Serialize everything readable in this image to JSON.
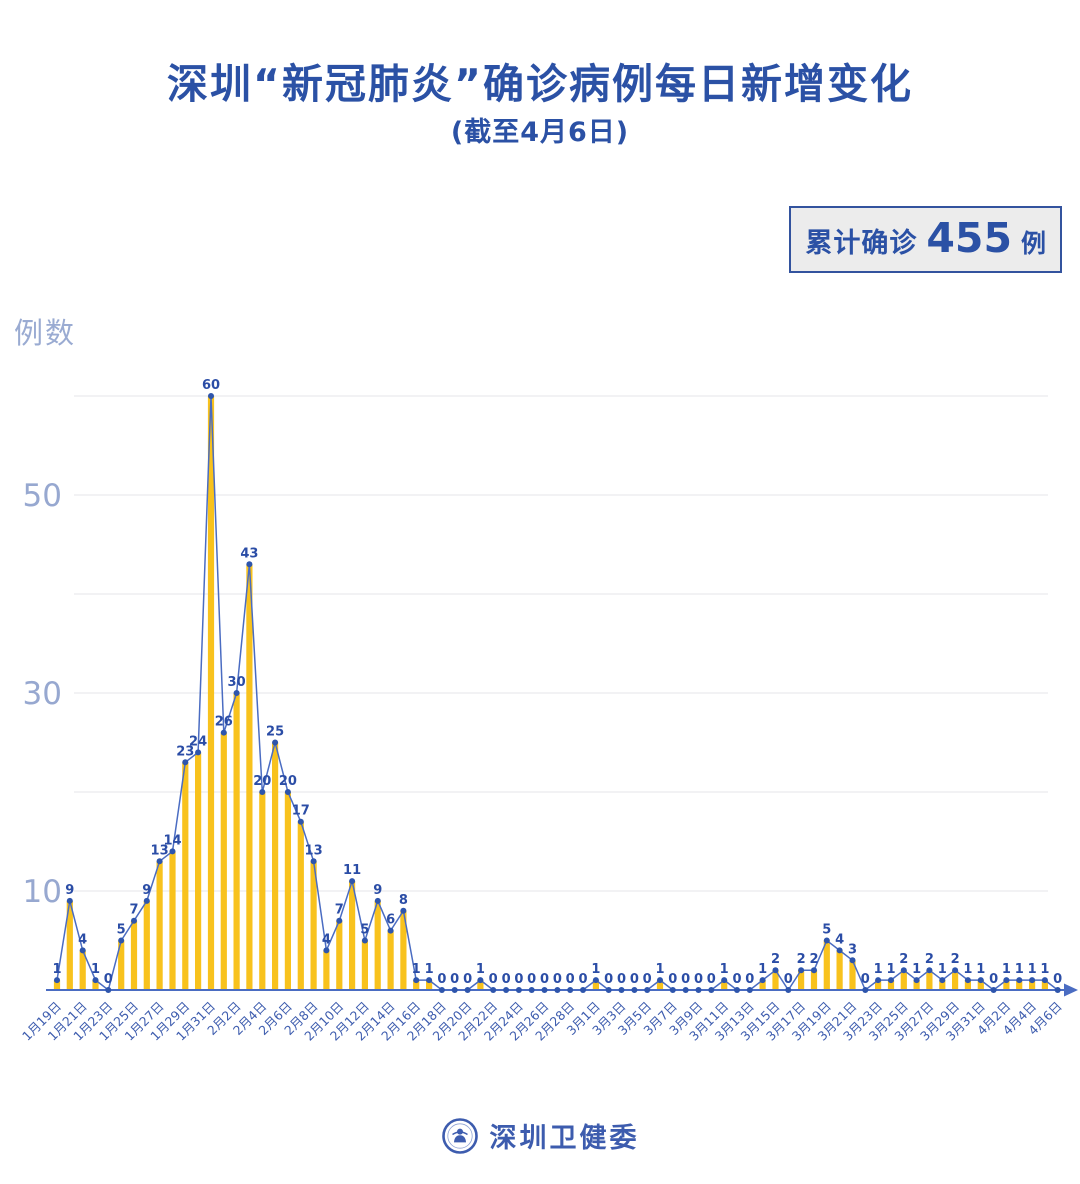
{
  "header": {
    "title": "深圳“新冠肺炎”确诊病例每日新增变化",
    "subtitle": "(截至4月6日)"
  },
  "badge": {
    "label": "累计确诊",
    "value": "455",
    "unit": "例"
  },
  "footer": {
    "org": "深圳卫健委"
  },
  "chart_data": {
    "type": "bar",
    "overlay": "line",
    "title": "深圳“新冠肺炎”确诊病例每日新增变化",
    "subtitle": "(截至4月6日)",
    "ylabel": "例数",
    "xlabel": "",
    "ylim": [
      0,
      62
    ],
    "gridlines": [
      10,
      20,
      30,
      40,
      50,
      60
    ],
    "yticks_labeled": [
      10,
      30,
      50
    ],
    "x_tick_step": 2,
    "legend": "none",
    "x": [
      "1月19日",
      "1月20日",
      "1月21日",
      "1月22日",
      "1月23日",
      "1月24日",
      "1月25日",
      "1月26日",
      "1月27日",
      "1月28日",
      "1月29日",
      "1月30日",
      "1月31日",
      "2月1日",
      "2月2日",
      "2月3日",
      "2月4日",
      "2月5日",
      "2月6日",
      "2月7日",
      "2月8日",
      "2月9日",
      "2月10日",
      "2月11日",
      "2月12日",
      "2月13日",
      "2月14日",
      "2月15日",
      "2月16日",
      "2月17日",
      "2月18日",
      "2月19日",
      "2月20日",
      "2月21日",
      "2月22日",
      "2月23日",
      "2月24日",
      "2月25日",
      "2月26日",
      "2月27日",
      "2月28日",
      "2月29日",
      "3月1日",
      "3月2日",
      "3月3日",
      "3月4日",
      "3月5日",
      "3月6日",
      "3月7日",
      "3月8日",
      "3月9日",
      "3月10日",
      "3月11日",
      "3月12日",
      "3月13日",
      "3月14日",
      "3月15日",
      "3月16日",
      "3月17日",
      "3月18日",
      "3月19日",
      "3月20日",
      "3月21日",
      "3月22日",
      "3月23日",
      "3月24日",
      "3月25日",
      "3月26日",
      "3月27日",
      "3月28日",
      "3月29日",
      "3月30日",
      "3月31日",
      "4月1日",
      "4月2日",
      "4月3日",
      "4月4日",
      "4月5日",
      "4月6日"
    ],
    "values": [
      1,
      9,
      4,
      1,
      0,
      5,
      7,
      9,
      13,
      14,
      23,
      24,
      60,
      26,
      30,
      43,
      20,
      25,
      20,
      17,
      13,
      4,
      7,
      11,
      5,
      9,
      6,
      8,
      1,
      1,
      0,
      0,
      0,
      1,
      0,
      0,
      0,
      0,
      0,
      0,
      0,
      0,
      1,
      0,
      0,
      0,
      0,
      1,
      0,
      0,
      0,
      0,
      1,
      0,
      0,
      1,
      2,
      0,
      2,
      2,
      5,
      4,
      3,
      0,
      1,
      1,
      2,
      1,
      2,
      1,
      2,
      1,
      1,
      0,
      1,
      1,
      1,
      1,
      0
    ],
    "total": 455,
    "colors": {
      "bar": "#f8c21d",
      "line": "#4a6cc2",
      "dot": "#2e55ac",
      "value_label": "#2b4da6",
      "x_tick_label": "#3d5cae",
      "y_tick_label": "#97a8d0",
      "gridline": "#e9e9ed",
      "axis": "#4a6cc2",
      "title": "#2b51a5",
      "badge_bg": "#ececec",
      "badge_border": "#33539e"
    }
  }
}
